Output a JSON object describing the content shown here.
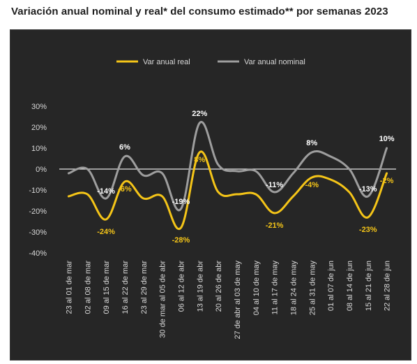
{
  "title": "Variación anual nominal y real* del consumo estimado** por semanas 2023",
  "colors": {
    "background": "#262626",
    "real": "#f5c518",
    "nominal": "#9e9e9e",
    "axis": "#e6e6e6",
    "label_nominal": "#ffffff",
    "label_real": "#f5c518"
  },
  "chart_data": {
    "type": "line",
    "title": "Variación anual nominal y real* del consumo estimado** por semanas 2023",
    "xlabel": "",
    "ylabel": "",
    "ylim": [
      -40,
      30
    ],
    "yticks": [
      "30%",
      "20%",
      "10%",
      "0%",
      "-10%",
      "-20%",
      "-30%",
      "-40%"
    ],
    "ytick_values": [
      30,
      20,
      10,
      0,
      -10,
      -20,
      -30,
      -40
    ],
    "grid": false,
    "legend_position": "top",
    "categories": [
      "23 al 01 de mar",
      "02 al 08 de mar",
      "09 al 15 de mar",
      "16 al 22 de mar",
      "23 al 29 de mar",
      "30 de mar al 05 de abr",
      "06 al 12 de abr",
      "13 al 19 de abr",
      "20 al 26 de abr",
      "27 de abr al 03 de may",
      "04 al 10 de may",
      "11 al 17 de may",
      "18 al 24 de may",
      "25 al 31 de may",
      "01 al 07 de jun",
      "08 al 14 de jun",
      "15 al 21 de jun",
      "22 al 28 de jun"
    ],
    "series": [
      {
        "name": "Var anual real",
        "color": "#f5c518",
        "values": [
          -13,
          -12,
          -24,
          -6,
          -14,
          -13,
          -28,
          8,
          -11,
          -12,
          -12,
          -21,
          -13,
          -4,
          -5,
          -11,
          -23,
          -2
        ],
        "labels": [
          {
            "index": 2,
            "text": "-24%"
          },
          {
            "index": 3,
            "text": "-6%"
          },
          {
            "index": 6,
            "text": "-28%"
          },
          {
            "index": 7,
            "text": "8%"
          },
          {
            "index": 11,
            "text": "-21%"
          },
          {
            "index": 13,
            "text": "-4%"
          },
          {
            "index": 16,
            "text": "-23%"
          },
          {
            "index": 17,
            "text": "-2%"
          }
        ]
      },
      {
        "name": "Var anual nominal",
        "color": "#9e9e9e",
        "values": [
          -2,
          0,
          -14,
          6,
          -3,
          -2,
          -19,
          22,
          2,
          -1,
          -1,
          -11,
          -2,
          8,
          6,
          0,
          -13,
          10
        ],
        "labels": [
          {
            "index": 2,
            "text": "-14%"
          },
          {
            "index": 3,
            "text": "6%"
          },
          {
            "index": 6,
            "text": "-19%"
          },
          {
            "index": 7,
            "text": "22%"
          },
          {
            "index": 11,
            "text": "-11%"
          },
          {
            "index": 13,
            "text": "8%"
          },
          {
            "index": 16,
            "text": "-13%"
          },
          {
            "index": 17,
            "text": "10%"
          }
        ]
      }
    ]
  }
}
